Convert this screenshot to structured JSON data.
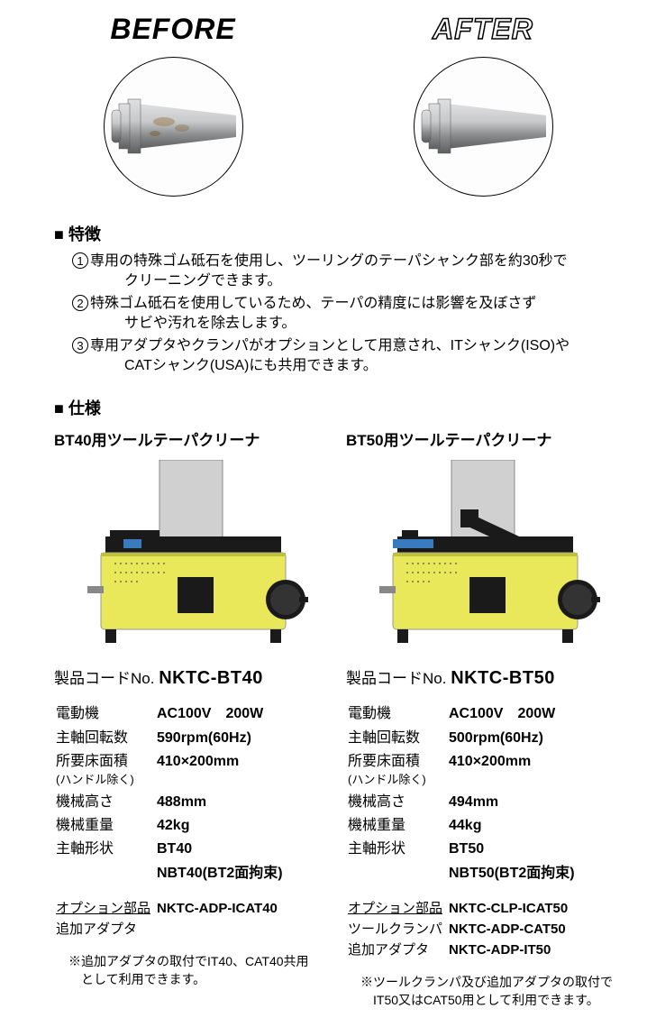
{
  "beforeAfter": {
    "beforeLabel": "BEFORE",
    "afterLabel": "AFTER",
    "metal_light": "#c8c9cb",
    "metal_mid": "#9a9b9d",
    "metal_dark": "#6d6e71",
    "rust_color": "#8a6a3a"
  },
  "featuresHead": "■ 特徴",
  "features": [
    {
      "num": "1",
      "line1": "専用の特殊ゴム砥石を使用し、ツーリングのテーパシャンク部を約30秒で",
      "line2": "クリーニングできます。"
    },
    {
      "num": "2",
      "line1": "特殊ゴム砥石を使用しているため、テーパの精度には影響を及ぼさず",
      "line2": "サビや汚れを除去します。"
    },
    {
      "num": "3",
      "line1": "専用アダプタやクランパがオプションとして用意され、ITシャンク(ISO)や",
      "line2": "CATシャンク(USA)にも共用できます。"
    }
  ],
  "specsHead": "■ 仕様",
  "machine": {
    "body_color": "#e8e85a",
    "panel_color": "#d0d0d0",
    "dark": "#1a1a1a"
  },
  "products": [
    {
      "title": "BT40用ツールテーパクリーナ",
      "codeLabel": "製品コードNo.",
      "codeValue": "NKTC-BT40",
      "specs": [
        {
          "label": "電動機",
          "value": "AC100V　200W"
        },
        {
          "label": "主軸回転数",
          "value": "590rpm(60Hz)"
        },
        {
          "label": "所要床面積",
          "value": "410×200mm",
          "sublabel": "(ハンドル除く)"
        },
        {
          "label": "機械高さ",
          "value": "488mm"
        },
        {
          "label": "機械重量",
          "value": "42kg"
        },
        {
          "label": "主軸形状",
          "value": "BT40"
        },
        {
          "label": "",
          "value": "NBT40(BT2面拘束)"
        }
      ],
      "options": [
        {
          "label": "オプション部品",
          "value": "NKTC-ADP-ICAT40",
          "underline": true
        },
        {
          "label": "追加アダプタ",
          "value": "",
          "underline": false
        }
      ],
      "note1": "※追加アダプタの取付でIT40、CAT40共用",
      "note2": "として利用できます。"
    },
    {
      "title": "BT50用ツールテーパクリーナ",
      "codeLabel": "製品コードNo.",
      "codeValue": "NKTC-BT50",
      "specs": [
        {
          "label": "電動機",
          "value": "AC100V　200W"
        },
        {
          "label": "主軸回転数",
          "value": "500rpm(60Hz)"
        },
        {
          "label": "所要床面積",
          "value": "410×200mm",
          "sublabel": "(ハンドル除く)"
        },
        {
          "label": "機械高さ",
          "value": "494mm"
        },
        {
          "label": "機械重量",
          "value": "44kg"
        },
        {
          "label": "主軸形状",
          "value": "BT50"
        },
        {
          "label": "",
          "value": "NBT50(BT2面拘束)"
        }
      ],
      "options": [
        {
          "label": "オプション部品",
          "value": "NKTC-CLP-ICAT50",
          "underline": true
        },
        {
          "label": "ツールクランパ",
          "value": "NKTC-ADP-CAT50",
          "underline": false
        },
        {
          "label": "追加アダプタ",
          "value": "NKTC-ADP-IT50",
          "underline": false
        }
      ],
      "note1": "※ツールクランパ及び追加アダプタの取付で",
      "note2": "IT50又はCAT50用として利用できます。"
    }
  ]
}
